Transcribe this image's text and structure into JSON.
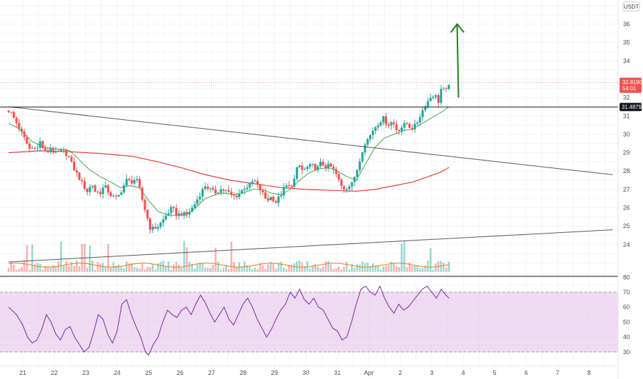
{
  "currency": "USDT",
  "colors": {
    "up": "#26a69a",
    "down": "#ef5350",
    "ema_short": "#43a047",
    "ema_long": "#e53935",
    "volume_ma": "#f57c00",
    "rsi": "#7b1fa2",
    "rsi_band": "#e1bee7",
    "arrow": "#1b7d1b",
    "trendline": "#555555"
  },
  "price_badge": {
    "price": "32.8190",
    "countdown": "54:01"
  },
  "level_badge": {
    "price": "31.4879"
  },
  "chart_data": [
    {
      "type": "candlestick",
      "title": "",
      "xlabel": "",
      "ylabel": "",
      "x_ticks": [
        "21",
        "22",
        "23",
        "24",
        "25",
        "26",
        "27",
        "28",
        "29",
        "30",
        "31",
        "Apr",
        "2",
        "3",
        "4",
        "5",
        "6",
        "7",
        "8"
      ],
      "y_ticks": [
        24,
        25,
        26,
        27,
        28,
        29,
        30,
        31,
        32,
        34,
        35,
        36
      ],
      "ylim": [
        22.5,
        37.5
      ],
      "grid": true,
      "current_price": 32.819,
      "horizontal_level": 31.4879,
      "close_path": [
        [
          20.55,
          31.3
        ],
        [
          20.62,
          31.2
        ],
        [
          20.9,
          30.3
        ],
        [
          21.1,
          29.6
        ],
        [
          21.25,
          29.1
        ],
        [
          21.35,
          29.4
        ],
        [
          21.5,
          29.2
        ],
        [
          21.55,
          29.6
        ],
        [
          21.65,
          29.2
        ],
        [
          21.75,
          28.95
        ],
        [
          21.9,
          29.3
        ],
        [
          22.0,
          28.95
        ],
        [
          22.1,
          29.0
        ],
        [
          22.3,
          29.1
        ],
        [
          22.45,
          28.8
        ],
        [
          22.6,
          28.2
        ],
        [
          22.8,
          27.6
        ],
        [
          22.9,
          27.3
        ],
        [
          23.05,
          26.9
        ],
        [
          23.2,
          27.3
        ],
        [
          23.3,
          26.9
        ],
        [
          23.45,
          26.8
        ],
        [
          23.6,
          27.2
        ],
        [
          23.75,
          26.8
        ],
        [
          23.85,
          26.6
        ],
        [
          24.0,
          26.5
        ],
        [
          24.15,
          27.0
        ],
        [
          24.3,
          27.5
        ],
        [
          24.45,
          27.4
        ],
        [
          24.6,
          27.6
        ],
        [
          24.7,
          27.1
        ],
        [
          24.82,
          26.3
        ],
        [
          24.95,
          25.5
        ],
        [
          25.05,
          24.9
        ],
        [
          25.15,
          24.85
        ],
        [
          25.3,
          25.0
        ],
        [
          25.45,
          25.3
        ],
        [
          25.6,
          25.7
        ],
        [
          25.75,
          26.0
        ],
        [
          25.9,
          25.6
        ],
        [
          26.05,
          25.7
        ],
        [
          26.2,
          25.6
        ],
        [
          26.35,
          25.9
        ],
        [
          26.5,
          26.3
        ],
        [
          26.65,
          26.8
        ],
        [
          26.8,
          27.2
        ],
        [
          26.95,
          27.0
        ],
        [
          27.1,
          26.8
        ],
        [
          27.3,
          27.0
        ],
        [
          27.5,
          26.9
        ],
        [
          27.6,
          26.7
        ],
        [
          27.75,
          26.6
        ],
        [
          27.9,
          26.8
        ],
        [
          28.05,
          27.1
        ],
        [
          28.2,
          27.2
        ],
        [
          28.35,
          27.5
        ],
        [
          28.5,
          27.1
        ],
        [
          28.65,
          26.7
        ],
        [
          28.75,
          26.4
        ],
        [
          28.9,
          26.6
        ],
        [
          29.05,
          26.3
        ],
        [
          29.2,
          26.7
        ],
        [
          29.35,
          27.2
        ],
        [
          29.5,
          27.1
        ],
        [
          29.65,
          27.6
        ],
        [
          29.75,
          28.4
        ],
        [
          29.9,
          28.0
        ],
        [
          30.05,
          28.2
        ],
        [
          30.2,
          28.3
        ],
        [
          30.35,
          28.1
        ],
        [
          30.5,
          28.5
        ],
        [
          30.6,
          28.2
        ],
        [
          30.75,
          28.3
        ],
        [
          30.9,
          28.0
        ],
        [
          31.0,
          27.7
        ],
        [
          31.1,
          27.2
        ],
        [
          31.25,
          27.0
        ],
        [
          31.4,
          27.3
        ],
        [
          31.55,
          27.6
        ],
        [
          31.7,
          28.5
        ],
        [
          31.85,
          29.5
        ],
        [
          32.0,
          29.8
        ],
        [
          32.15,
          30.3
        ],
        [
          32.3,
          30.6
        ],
        [
          32.45,
          30.9
        ],
        [
          32.6,
          30.5
        ],
        [
          32.75,
          30.7
        ],
        [
          32.9,
          30.2
        ],
        [
          33.05,
          30.4
        ],
        [
          33.2,
          30.6
        ],
        [
          33.35,
          30.3
        ],
        [
          33.5,
          30.5
        ],
        [
          33.65,
          31.1
        ],
        [
          33.8,
          31.6
        ],
        [
          33.95,
          32.0
        ],
        [
          34.1,
          32.2
        ],
        [
          34.2,
          31.7
        ],
        [
          34.3,
          32.5
        ],
        [
          34.45,
          32.3
        ],
        [
          34.55,
          32.8
        ]
      ],
      "ema_short": [
        [
          20.55,
          30.6
        ],
        [
          20.9,
          30.3
        ],
        [
          21.3,
          29.6
        ],
        [
          21.7,
          29.3
        ],
        [
          22.1,
          29.2
        ],
        [
          22.5,
          29.1
        ],
        [
          22.8,
          28.6
        ],
        [
          23.1,
          28.1
        ],
        [
          23.45,
          27.7
        ],
        [
          23.8,
          27.4
        ],
        [
          24.1,
          27.1
        ],
        [
          24.4,
          27.2
        ],
        [
          24.7,
          27.1
        ],
        [
          25.0,
          26.4
        ],
        [
          25.3,
          25.8
        ],
        [
          25.6,
          25.6
        ],
        [
          25.9,
          25.6
        ],
        [
          26.2,
          25.6
        ],
        [
          26.5,
          26.0
        ],
        [
          26.8,
          26.5
        ],
        [
          27.1,
          26.7
        ],
        [
          27.4,
          26.8
        ],
        [
          27.7,
          26.7
        ],
        [
          28.0,
          26.8
        ],
        [
          28.3,
          27.0
        ],
        [
          28.6,
          27.0
        ],
        [
          28.9,
          26.8
        ],
        [
          29.2,
          26.7
        ],
        [
          29.5,
          27.0
        ],
        [
          29.8,
          27.5
        ],
        [
          30.1,
          27.9
        ],
        [
          30.4,
          28.1
        ],
        [
          30.7,
          28.2
        ],
        [
          31.0,
          28.0
        ],
        [
          31.3,
          27.7
        ],
        [
          31.6,
          27.5
        ],
        [
          31.9,
          28.4
        ],
        [
          32.2,
          29.3
        ],
        [
          32.5,
          29.8
        ],
        [
          32.8,
          30.0
        ],
        [
          33.1,
          30.2
        ],
        [
          33.4,
          30.3
        ],
        [
          33.7,
          30.6
        ],
        [
          34.0,
          30.9
        ],
        [
          34.3,
          31.2
        ],
        [
          34.55,
          31.5
        ]
      ],
      "ema_long": [
        [
          20.55,
          29.0
        ],
        [
          21.5,
          29.1
        ],
        [
          22.5,
          29.05
        ],
        [
          23.5,
          28.95
        ],
        [
          24.5,
          28.8
        ],
        [
          25.3,
          28.5
        ],
        [
          26.0,
          28.2
        ],
        [
          26.8,
          27.8
        ],
        [
          27.6,
          27.5
        ],
        [
          28.4,
          27.3
        ],
        [
          29.2,
          27.1
        ],
        [
          30.0,
          27.0
        ],
        [
          30.8,
          26.95
        ],
        [
          31.6,
          26.9
        ],
        [
          32.2,
          27.0
        ],
        [
          32.8,
          27.2
        ],
        [
          33.4,
          27.4
        ],
        [
          33.9,
          27.7
        ],
        [
          34.3,
          27.95
        ],
        [
          34.55,
          28.2
        ]
      ],
      "trendlines": [
        {
          "from": [
            20.55,
            31.5
          ],
          "to": [
            39.75,
            27.8
          ]
        },
        {
          "from": [
            20.55,
            23.05
          ],
          "to": [
            39.75,
            24.8
          ]
        }
      ],
      "annotations": [
        {
          "type": "arrow",
          "from": [
            34.85,
            32.0
          ],
          "to": [
            34.85,
            36.0
          ]
        }
      ]
    },
    {
      "type": "bar",
      "name": "volume",
      "title": "",
      "volume_baseline": 22.5,
      "volume_top": 24.3
    },
    {
      "type": "line",
      "title": "",
      "xlabel": "",
      "ylabel": "",
      "y_ticks": [
        30,
        40,
        50,
        60,
        70,
        80
      ],
      "ylim": [
        25,
        82
      ],
      "band": [
        30,
        70
      ],
      "grid": true,
      "rsi": [
        [
          20.55,
          60
        ],
        [
          20.8,
          55
        ],
        [
          21.0,
          48
        ],
        [
          21.15,
          40
        ],
        [
          21.3,
          36
        ],
        [
          21.45,
          38
        ],
        [
          21.6,
          45
        ],
        [
          21.75,
          55
        ],
        [
          21.9,
          50
        ],
        [
          22.05,
          42
        ],
        [
          22.2,
          38
        ],
        [
          22.35,
          45
        ],
        [
          22.5,
          47
        ],
        [
          22.65,
          40
        ],
        [
          22.8,
          35
        ],
        [
          22.95,
          30
        ],
        [
          23.1,
          33
        ],
        [
          23.25,
          43
        ],
        [
          23.4,
          55
        ],
        [
          23.55,
          52
        ],
        [
          23.7,
          42
        ],
        [
          23.85,
          36
        ],
        [
          24.0,
          44
        ],
        [
          24.15,
          62
        ],
        [
          24.3,
          65
        ],
        [
          24.45,
          55
        ],
        [
          24.6,
          47
        ],
        [
          24.75,
          40
        ],
        [
          24.9,
          30
        ],
        [
          25.0,
          28
        ],
        [
          25.15,
          35
        ],
        [
          25.3,
          40
        ],
        [
          25.45,
          50
        ],
        [
          25.6,
          58
        ],
        [
          25.75,
          55
        ],
        [
          25.9,
          53
        ],
        [
          26.05,
          58
        ],
        [
          26.2,
          60
        ],
        [
          26.35,
          55
        ],
        [
          26.5,
          62
        ],
        [
          26.65,
          68
        ],
        [
          26.8,
          63
        ],
        [
          26.95,
          56
        ],
        [
          27.1,
          50
        ],
        [
          27.25,
          55
        ],
        [
          27.4,
          60
        ],
        [
          27.55,
          52
        ],
        [
          27.7,
          48
        ],
        [
          27.85,
          55
        ],
        [
          28.0,
          62
        ],
        [
          28.15,
          66
        ],
        [
          28.3,
          60
        ],
        [
          28.45,
          52
        ],
        [
          28.6,
          46
        ],
        [
          28.75,
          40
        ],
        [
          28.9,
          45
        ],
        [
          29.05,
          52
        ],
        [
          29.2,
          58
        ],
        [
          29.35,
          62
        ],
        [
          29.5,
          70
        ],
        [
          29.65,
          66
        ],
        [
          29.8,
          72
        ],
        [
          29.95,
          65
        ],
        [
          30.1,
          62
        ],
        [
          30.25,
          66
        ],
        [
          30.4,
          60
        ],
        [
          30.55,
          58
        ],
        [
          30.7,
          52
        ],
        [
          30.85,
          46
        ],
        [
          31.0,
          44
        ],
        [
          31.15,
          38
        ],
        [
          31.3,
          40
        ],
        [
          31.45,
          50
        ],
        [
          31.6,
          62
        ],
        [
          31.75,
          72
        ],
        [
          31.9,
          74
        ],
        [
          32.05,
          70
        ],
        [
          32.2,
          68
        ],
        [
          32.35,
          74
        ],
        [
          32.5,
          66
        ],
        [
          32.65,
          60
        ],
        [
          32.8,
          56
        ],
        [
          32.95,
          62
        ],
        [
          33.1,
          58
        ],
        [
          33.25,
          60
        ],
        [
          33.4,
          64
        ],
        [
          33.55,
          68
        ],
        [
          33.7,
          72
        ],
        [
          33.85,
          74
        ],
        [
          34.0,
          70
        ],
        [
          34.15,
          66
        ],
        [
          34.3,
          72
        ],
        [
          34.45,
          68
        ],
        [
          34.55,
          66
        ]
      ]
    }
  ]
}
